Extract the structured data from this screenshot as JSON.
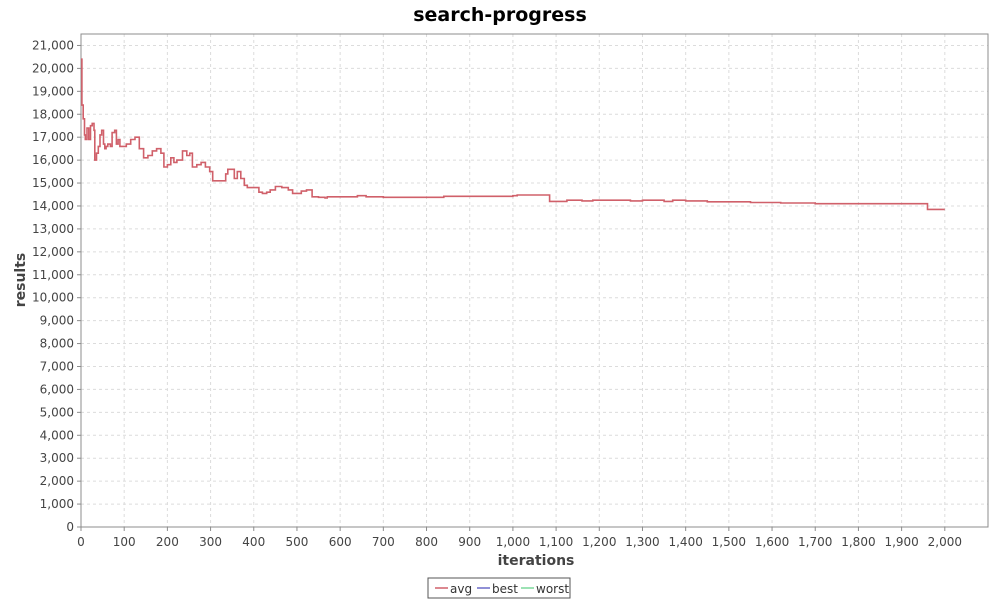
{
  "chart_data": {
    "type": "line",
    "title": "search-progress",
    "xlabel": "iterations",
    "ylabel": "results",
    "xlim": [
      0,
      2100
    ],
    "ylim": [
      0,
      21500
    ],
    "x_ticks": [
      0,
      100,
      200,
      300,
      400,
      500,
      600,
      700,
      800,
      900,
      1000,
      1100,
      1200,
      1300,
      1400,
      1500,
      1600,
      1700,
      1800,
      1900,
      2000
    ],
    "x_tick_labels": [
      "0",
      "100",
      "200",
      "300",
      "400",
      "500",
      "600",
      "700",
      "800",
      "900",
      "1,000",
      "1,100",
      "1,200",
      "1,300",
      "1,400",
      "1,500",
      "1,600",
      "1,700",
      "1,800",
      "1,900",
      "2,000"
    ],
    "y_ticks": [
      0,
      1000,
      2000,
      3000,
      4000,
      5000,
      6000,
      7000,
      8000,
      9000,
      10000,
      11000,
      12000,
      13000,
      14000,
      15000,
      16000,
      17000,
      18000,
      19000,
      20000,
      21000
    ],
    "y_tick_labels": [
      "0",
      "1,000",
      "2,000",
      "3,000",
      "4,000",
      "5,000",
      "6,000",
      "7,000",
      "8,000",
      "9,000",
      "10,000",
      "11,000",
      "12,000",
      "13,000",
      "14,000",
      "15,000",
      "16,000",
      "17,000",
      "18,000",
      "19,000",
      "20,000",
      "21,000"
    ],
    "grid": true,
    "legend_position": "bottom-center",
    "series": [
      {
        "name": "avg",
        "color": "#d0606a",
        "step": true,
        "points": [
          [
            0,
            20400
          ],
          [
            2,
            18400
          ],
          [
            5,
            17800
          ],
          [
            8,
            17100
          ],
          [
            10,
            16900
          ],
          [
            14,
            17400
          ],
          [
            18,
            16900
          ],
          [
            22,
            17500
          ],
          [
            26,
            17600
          ],
          [
            30,
            17300
          ],
          [
            32,
            16000
          ],
          [
            36,
            16300
          ],
          [
            40,
            16600
          ],
          [
            44,
            17100
          ],
          [
            48,
            17300
          ],
          [
            52,
            16700
          ],
          [
            55,
            16500
          ],
          [
            58,
            16600
          ],
          [
            62,
            16700
          ],
          [
            68,
            16600
          ],
          [
            72,
            17200
          ],
          [
            78,
            17300
          ],
          [
            82,
            16700
          ],
          [
            86,
            16900
          ],
          [
            90,
            16600
          ],
          [
            105,
            16700
          ],
          [
            115,
            16900
          ],
          [
            125,
            17000
          ],
          [
            135,
            16500
          ],
          [
            145,
            16100
          ],
          [
            155,
            16200
          ],
          [
            165,
            16400
          ],
          [
            175,
            16500
          ],
          [
            185,
            16300
          ],
          [
            192,
            15700
          ],
          [
            200,
            15800
          ],
          [
            208,
            16100
          ],
          [
            215,
            15900
          ],
          [
            222,
            16000
          ],
          [
            235,
            16400
          ],
          [
            245,
            16200
          ],
          [
            252,
            16300
          ],
          [
            258,
            15700
          ],
          [
            268,
            15800
          ],
          [
            278,
            15900
          ],
          [
            288,
            15700
          ],
          [
            298,
            15500
          ],
          [
            305,
            15100
          ],
          [
            320,
            15100
          ],
          [
            335,
            15400
          ],
          [
            340,
            15600
          ],
          [
            355,
            15200
          ],
          [
            362,
            15500
          ],
          [
            370,
            15200
          ],
          [
            378,
            14900
          ],
          [
            385,
            14800
          ],
          [
            395,
            14800
          ],
          [
            405,
            14800
          ],
          [
            412,
            14600
          ],
          [
            420,
            14550
          ],
          [
            430,
            14600
          ],
          [
            438,
            14700
          ],
          [
            450,
            14850
          ],
          [
            465,
            14800
          ],
          [
            480,
            14700
          ],
          [
            490,
            14550
          ],
          [
            510,
            14650
          ],
          [
            522,
            14700
          ],
          [
            535,
            14400
          ],
          [
            550,
            14380
          ],
          [
            565,
            14350
          ],
          [
            570,
            14400
          ],
          [
            600,
            14400
          ],
          [
            630,
            14400
          ],
          [
            640,
            14450
          ],
          [
            660,
            14400
          ],
          [
            700,
            14380
          ],
          [
            760,
            14380
          ],
          [
            820,
            14380
          ],
          [
            840,
            14420
          ],
          [
            900,
            14420
          ],
          [
            960,
            14420
          ],
          [
            1000,
            14450
          ],
          [
            1010,
            14480
          ],
          [
            1050,
            14480
          ],
          [
            1085,
            14200
          ],
          [
            1110,
            14200
          ],
          [
            1125,
            14250
          ],
          [
            1160,
            14220
          ],
          [
            1185,
            14250
          ],
          [
            1260,
            14250
          ],
          [
            1272,
            14220
          ],
          [
            1300,
            14250
          ],
          [
            1350,
            14200
          ],
          [
            1370,
            14250
          ],
          [
            1400,
            14220
          ],
          [
            1450,
            14180
          ],
          [
            1500,
            14180
          ],
          [
            1550,
            14150
          ],
          [
            1600,
            14150
          ],
          [
            1620,
            14130
          ],
          [
            1700,
            14100
          ],
          [
            1800,
            14100
          ],
          [
            1900,
            14100
          ],
          [
            1960,
            13850
          ],
          [
            2000,
            13850
          ]
        ]
      },
      {
        "name": "best",
        "color": "#6a6ac8",
        "points": []
      },
      {
        "name": "worst",
        "color": "#7ad89a",
        "points": []
      }
    ]
  }
}
